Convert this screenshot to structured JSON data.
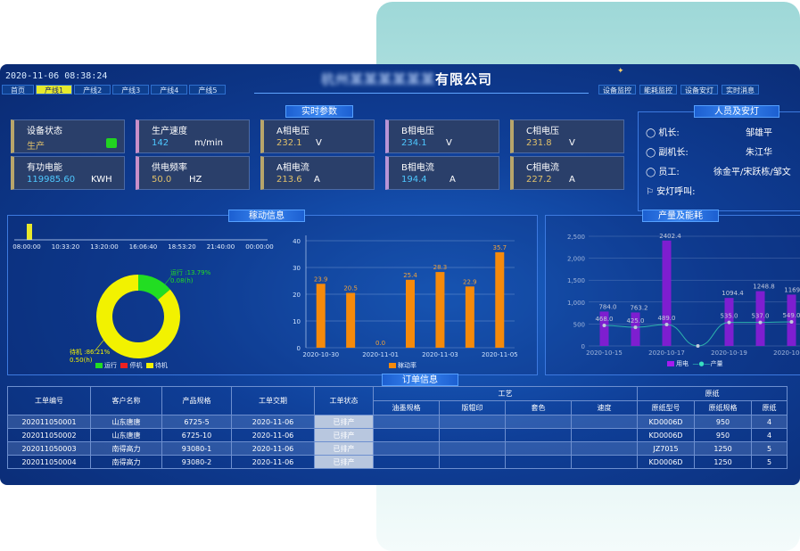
{
  "header": {
    "datetime": "2020-11-06 08:38:24",
    "company_blurred": "杭州某某某某某某",
    "company_suffix": "有限公司",
    "line_tabs": [
      "首页",
      "产线1",
      "产线2",
      "产线3",
      "产线4",
      "产线5"
    ],
    "active_tab": "产线1",
    "right_tabs": [
      "设备监控",
      "能耗监控",
      "设备安灯",
      "实时消息"
    ]
  },
  "realtime": {
    "title": "实时参数",
    "cards": [
      {
        "label": "设备状态",
        "value": "生产",
        "unit": ""
      },
      {
        "label": "生产速度",
        "value": "142",
        "unit": "m/min"
      },
      {
        "label": "A相电压",
        "value": "232.1",
        "unit": "V"
      },
      {
        "label": "B相电压",
        "value": "234.1",
        "unit": "V"
      },
      {
        "label": "C相电压",
        "value": "231.8",
        "unit": "V"
      },
      {
        "label": "有功电能",
        "value": "119985.60",
        "unit": "KWH"
      },
      {
        "label": "供电频率",
        "value": "50.0",
        "unit": "HZ"
      },
      {
        "label": "A相电流",
        "value": "213.6",
        "unit": "A"
      },
      {
        "label": "B相电流",
        "value": "194.4",
        "unit": "A"
      },
      {
        "label": "C相电流",
        "value": "227.2",
        "unit": "A"
      }
    ],
    "status_color": "#21d321"
  },
  "people": {
    "title": "人员及安灯",
    "rows": [
      {
        "label": "机长:",
        "value": "邹雄平"
      },
      {
        "label": "副机长:",
        "value": "朱江华"
      },
      {
        "label": "员工:",
        "value": "徐金平/宋跃栋/邹文"
      },
      {
        "label": "安灯呼叫:",
        "value": ""
      }
    ]
  },
  "activity": {
    "title": "稼动信息",
    "timeline_ticks": [
      "08:00:00",
      "10:33:20",
      "13:20:00",
      "16:06:40",
      "18:53:20",
      "21:40:00",
      "00:00:00"
    ],
    "legend": [
      "运行",
      "停机",
      "待机"
    ],
    "donut_labels": {
      "run": "运行 :13.79%",
      "run_hours": "0.08(h)",
      "standby": "待机 :86.21%",
      "standby_hours": "0.50(h)"
    },
    "colors": {
      "run": "#22dd22",
      "stop": "#ee2222",
      "standby": "#f2f200"
    }
  },
  "chart_data": [
    {
      "type": "pie",
      "labels": [
        "运行",
        "停机",
        "待机"
      ],
      "values": [
        13.79,
        0,
        86.21
      ]
    },
    {
      "type": "bar",
      "categories": [
        "2020-10-30",
        "2020-10-31",
        "2020-11-01",
        "2020-11-02",
        "2020-11-03",
        "2020-11-04",
        "2020-11-05"
      ],
      "series": [
        {
          "name": "稼动率",
          "values": [
            23.9,
            20.5,
            0.0,
            25.4,
            28.3,
            22.9,
            35.7
          ]
        }
      ],
      "x_tick_labels": [
        "2020-10-30",
        "2020-11-01",
        "2020-11-03",
        "2020-11-05"
      ],
      "yticks": [
        0,
        10,
        20,
        30,
        40
      ],
      "ylim": [
        0,
        40
      ],
      "title": "",
      "xlabel": "",
      "ylabel": ""
    },
    {
      "type": "bar",
      "title": "产量及能耗",
      "categories": [
        "2020-10-15",
        "2020-10-16",
        "2020-10-17",
        "2020-10-18",
        "2020-10-19",
        "2020-10-20",
        "2020-10-21"
      ],
      "x_tick_labels": [
        "2020-10-15",
        "2020-10-17",
        "2020-10-19",
        "2020-10-21"
      ],
      "series": [
        {
          "name": "用电",
          "type": "bar",
          "values": [
            784.0,
            763.2,
            2402.4,
            0,
            1094.4,
            1248.8,
            1169.6
          ]
        },
        {
          "name": "产量",
          "type": "line",
          "values": [
            468.0,
            425.0,
            489.0,
            0,
            535.0,
            537.0,
            549.0
          ]
        }
      ],
      "yticks": [
        0,
        500,
        1000,
        1500,
        2000,
        2500
      ],
      "ylim": [
        0,
        2500
      ]
    }
  ],
  "orders": {
    "title": "订单信息",
    "headers": [
      "工单编号",
      "客户名称",
      "产品规格",
      "工单交期",
      "工单状态"
    ],
    "group_craft": "工艺",
    "group_paper": "原纸",
    "craft_headers": [
      "油墨规格",
      "版辊印",
      "套色",
      "速度"
    ],
    "paper_headers": [
      "原纸型号",
      "原纸规格",
      "原纸"
    ],
    "rows": [
      [
        "202011050001",
        "山东唐唐",
        "6725-5",
        "2020-11-06",
        "已排产",
        "",
        "",
        "",
        "",
        "KD0006D",
        "950",
        "4"
      ],
      [
        "202011050002",
        "山东唐唐",
        "6725-10",
        "2020-11-06",
        "已排产",
        "",
        "",
        "",
        "",
        "KD0006D",
        "950",
        "4"
      ],
      [
        "202011050003",
        "南得高力",
        "93080-1",
        "2020-11-06",
        "已排产",
        "",
        "",
        "",
        "",
        "JZ7015",
        "1250",
        "5"
      ],
      [
        "202011050004",
        "南得高力",
        "93080-2",
        "2020-11-06",
        "已排产",
        "",
        "",
        "",
        "",
        "KD0006D",
        "1250",
        "5"
      ]
    ]
  }
}
